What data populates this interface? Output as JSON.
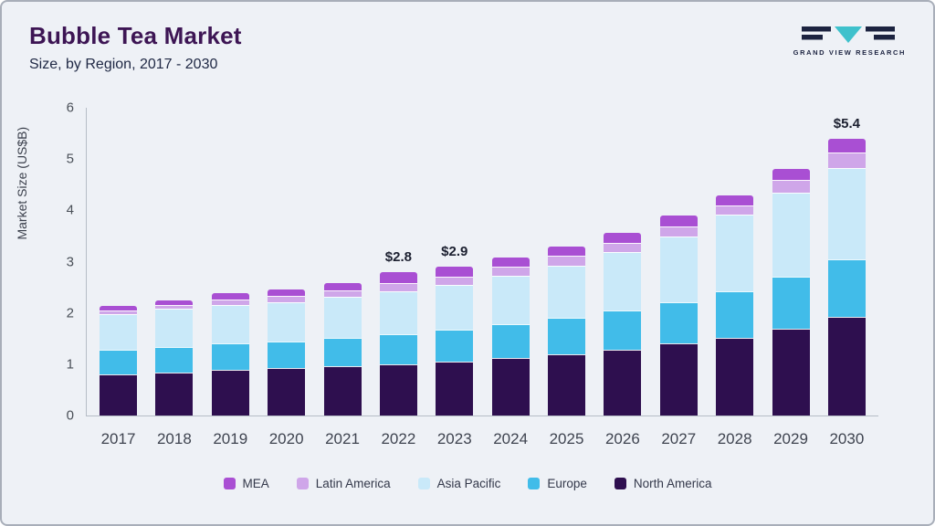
{
  "header": {
    "title": "Bubble Tea Market",
    "subtitle": "Size, by Region, 2017 - 2030"
  },
  "logo": {
    "text": "GRAND VIEW RESEARCH"
  },
  "colors": {
    "background": "#eef1f6",
    "title": "#3d1554",
    "axis": "#b6bcc6",
    "logo_dark": "#1c2340",
    "logo_teal": "#3ec1cc"
  },
  "chart_data": {
    "type": "bar",
    "stacked": true,
    "title": "Bubble Tea Market",
    "subtitle": "Size, by Region, 2017 - 2030",
    "xlabel": "",
    "ylabel": "Market Size (US$B)",
    "ylim": [
      0,
      6
    ],
    "yticks": [
      0,
      1,
      2,
      3,
      4,
      5,
      6
    ],
    "grid": false,
    "legend_position": "bottom",
    "categories": [
      "2017",
      "2018",
      "2019",
      "2020",
      "2021",
      "2022",
      "2023",
      "2024",
      "2025",
      "2026",
      "2027",
      "2028",
      "2029",
      "2030"
    ],
    "series": [
      {
        "name": "North America",
        "color": "#2e0f4f",
        "values": [
          0.8,
          0.84,
          0.89,
          0.92,
          0.96,
          1.0,
          1.05,
          1.12,
          1.2,
          1.29,
          1.4,
          1.52,
          1.7,
          1.92
        ]
      },
      {
        "name": "Europe",
        "color": "#41bce9",
        "values": [
          0.48,
          0.49,
          0.51,
          0.53,
          0.55,
          0.58,
          0.63,
          0.66,
          0.7,
          0.76,
          0.81,
          0.91,
          1.0,
          1.12
        ]
      },
      {
        "name": "Asia Pacific",
        "color": "#c9e9f9",
        "values": [
          0.7,
          0.76,
          0.76,
          0.76,
          0.8,
          0.85,
          0.87,
          0.94,
          1.02,
          1.13,
          1.28,
          1.48,
          1.64,
          1.78
        ]
      },
      {
        "name": "Latin America",
        "color": "#cfa6e9",
        "values": [
          0.07,
          0.07,
          0.1,
          0.12,
          0.13,
          0.16,
          0.16,
          0.18,
          0.19,
          0.19,
          0.2,
          0.18,
          0.25,
          0.3
        ]
      },
      {
        "name": "MEA",
        "color": "#a94fd3",
        "values": [
          0.08,
          0.08,
          0.12,
          0.13,
          0.14,
          0.21,
          0.19,
          0.18,
          0.19,
          0.2,
          0.21,
          0.21,
          0.21,
          0.28
        ]
      }
    ],
    "annotations": [
      {
        "category": "2022",
        "text": "$2.8"
      },
      {
        "category": "2023",
        "text": "$2.9"
      },
      {
        "category": "2030",
        "text": "$5.4"
      }
    ]
  }
}
